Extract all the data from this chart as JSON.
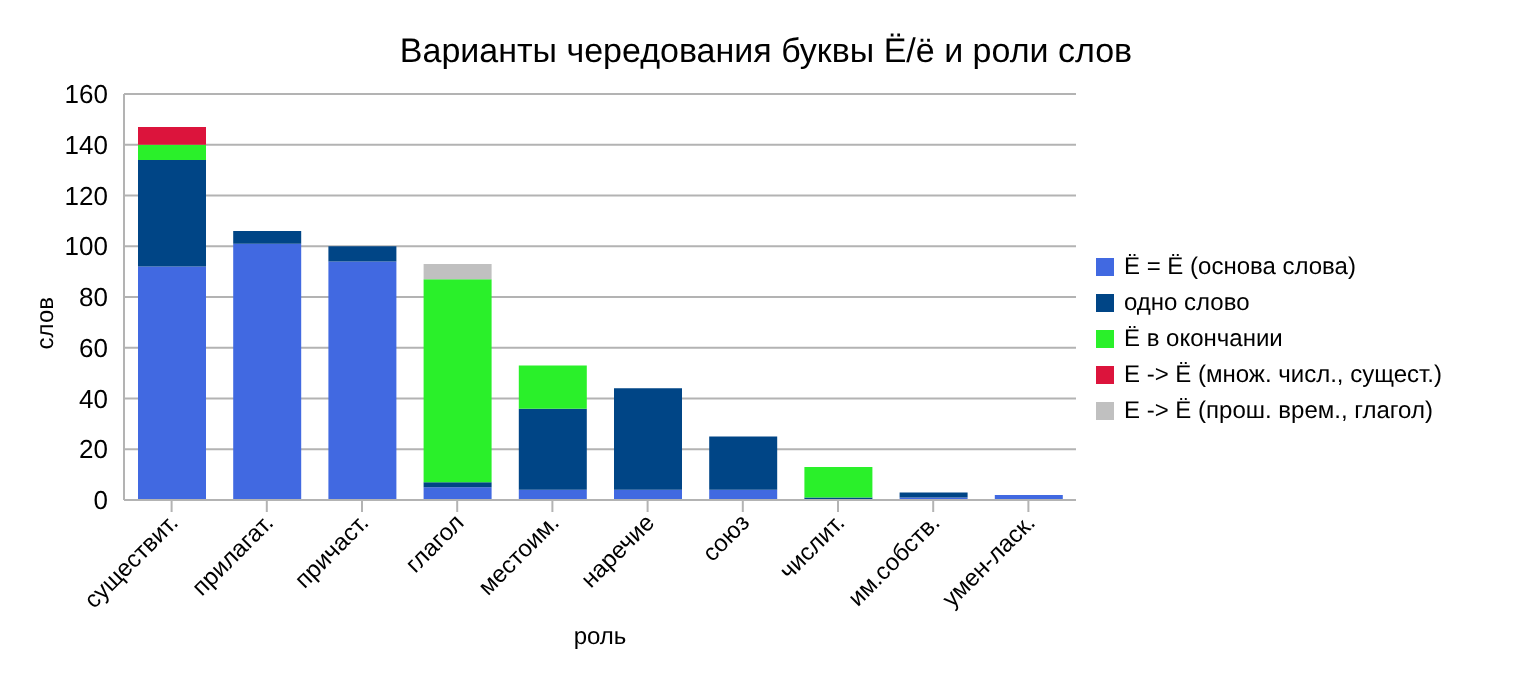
{
  "chart_data": {
    "type": "bar",
    "stacked": true,
    "title": "Варианты чередования буквы Ё/ё и роли слов",
    "xlabel": "роль",
    "ylabel": "слов",
    "categories": [
      "существит.",
      "прилагат.",
      "причаст.",
      "глагол",
      "местоим.",
      "наречие",
      "союз",
      "числит.",
      "им.собств.",
      "умен-ласк."
    ],
    "series": [
      {
        "name": "Ё = Ё (основа слова)",
        "color": "#4169e1",
        "values": [
          92,
          101,
          94,
          5,
          4,
          4,
          4,
          0,
          1,
          2
        ]
      },
      {
        "name": "одно слово",
        "color": "#004586",
        "values": [
          42,
          5,
          6,
          2,
          32,
          40,
          21,
          1,
          2,
          0
        ]
      },
      {
        "name": "Ё в окончании",
        "color": "#2af02a",
        "values": [
          6,
          0,
          0,
          80,
          17,
          0,
          0,
          12,
          0,
          0
        ]
      },
      {
        "name": "Е -> Ё (множ. числ., сущест.)",
        "color": "#dc143c",
        "values": [
          7,
          0,
          0,
          0,
          0,
          0,
          0,
          0,
          0,
          0
        ]
      },
      {
        "name": "Е -> Ё (прош. врем., глагол)",
        "color": "#c0c0c0",
        "values": [
          0,
          0,
          0,
          6,
          0,
          0,
          0,
          0,
          0,
          0
        ]
      }
    ],
    "ylim": [
      0,
      160
    ],
    "yticks": [
      0,
      20,
      40,
      60,
      80,
      100,
      120,
      140,
      160
    ],
    "grid": "y",
    "legend": "right"
  }
}
